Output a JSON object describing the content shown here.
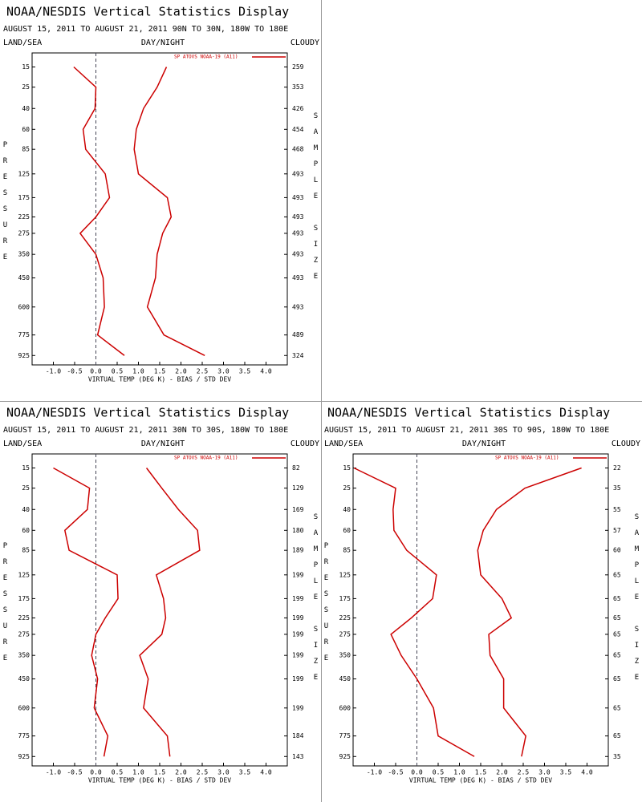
{
  "chart_data": [
    {
      "type": "line",
      "title": "NOAA/NESDIS Vertical Statistics Display",
      "subtitle": "AUGUST 15, 2011 TO AUGUST 21, 2011  90N TO 30N, 180W TO 180E",
      "land_sea": "LAND/SEA",
      "day_night": "DAY/NIGHT",
      "cloudy": "CLOUDY",
      "y_label": "PRESSURE",
      "y2_label": "SAMPLE SIZE",
      "x_label": "VIRTUAL TEMP (DEG K) - BIAS / STD DEV",
      "y": [
        15,
        25,
        40,
        60,
        85,
        125,
        175,
        225,
        275,
        350,
        450,
        600,
        775,
        925
      ],
      "yticks": [
        15,
        25,
        40,
        60,
        85,
        125,
        175,
        225,
        275,
        350,
        450,
        600,
        775,
        925
      ],
      "ylim": [
        10,
        1000
      ],
      "sample_size": [
        259,
        353,
        426,
        454,
        468,
        493,
        493,
        493,
        493,
        493,
        493,
        493,
        489,
        324
      ],
      "xlim": [
        -1.5,
        4.5
      ],
      "xticks": [
        {
          "value": -1,
          "label": "-1.0"
        },
        -0.5,
        {
          "value": 0,
          "label": "0.0"
        },
        0.5,
        {
          "value": 1,
          "label": "1.0"
        },
        1.5,
        {
          "value": 2,
          "label": "2.0"
        },
        2.5,
        {
          "value": 3,
          "label": "3.0"
        },
        3.5,
        {
          "value": 4,
          "label": "4.0"
        }
      ],
      "zero_line": true,
      "series": [
        {
          "name": "SP ATOVS NOAA-19 (A11)",
          "color": "#cc0000",
          "values": [
            -0.52,
            0.0,
            -0.02,
            -0.3,
            -0.24,
            0.22,
            0.32,
            0.0,
            -0.37,
            0.0,
            0.17,
            0.2,
            0.04,
            0.67
          ],
          "std_dev": [
            1.66,
            1.44,
            1.12,
            0.95,
            0.9,
            1.0,
            1.68,
            1.77,
            1.57,
            1.44,
            1.4,
            1.21,
            1.6,
            2.56
          ]
        }
      ]
    },
    {
      "type": "line",
      "title": "NOAA/NESDIS Vertical Statistics Display",
      "subtitle": "AUGUST 15, 2011 TO AUGUST 21, 2011  30N TO 30S, 180W TO 180E",
      "land_sea": "LAND/SEA",
      "day_night": "DAY/NIGHT",
      "cloudy": "CLOUDY",
      "y_label": "PRESSURE",
      "y2_label": "SAMPLE SIZE",
      "x_label": "VIRTUAL TEMP (DEG K) - BIAS / STD DEV",
      "y": [
        15,
        25,
        40,
        60,
        85,
        125,
        175,
        225,
        275,
        350,
        450,
        600,
        775,
        925
      ],
      "yticks": [
        15,
        25,
        40,
        60,
        85,
        125,
        175,
        225,
        275,
        350,
        450,
        600,
        775,
        925
      ],
      "ylim": [
        10,
        1000
      ],
      "sample_size": [
        82,
        129,
        169,
        180,
        189,
        199,
        199,
        199,
        199,
        199,
        199,
        199,
        184,
        143
      ],
      "xlim": [
        -1.5,
        4.5
      ],
      "xticks": [
        {
          "value": -1,
          "label": "-1.0"
        },
        -0.5,
        {
          "value": 0,
          "label": "0.0"
        },
        0.5,
        {
          "value": 1,
          "label": "1.0"
        },
        1.5,
        {
          "value": 2,
          "label": "2.0"
        },
        2.5,
        {
          "value": 3,
          "label": "3.0"
        },
        3.5,
        {
          "value": 4,
          "label": "4.0"
        }
      ],
      "zero_line": true,
      "series": [
        {
          "name": "SP ATOVS NOAA-19 (A11)",
          "color": "#cc0000",
          "values": [
            -1.0,
            -0.15,
            -0.2,
            -0.73,
            -0.63,
            0.5,
            0.52,
            0.22,
            0.0,
            -0.1,
            0.04,
            -0.04,
            0.28,
            0.19
          ],
          "std_dev": [
            1.19,
            1.55,
            1.94,
            2.39,
            2.44,
            1.42,
            1.59,
            1.64,
            1.55,
            1.03,
            1.23,
            1.12,
            1.68,
            1.74
          ]
        }
      ]
    },
    {
      "type": "line",
      "title": "NOAA/NESDIS Vertical Statistics Display",
      "subtitle": "AUGUST 15, 2011 TO AUGUST 21, 2011  30S TO 90S, 180W TO 180E",
      "land_sea": "LAND/SEA",
      "day_night": "DAY/NIGHT",
      "cloudy": "CLOUDY",
      "y_label": "PRESSURE",
      "y2_label": "SAMPLE SIZE",
      "x_label": "VIRTUAL TEMP (DEG K) - BIAS / STD DEV",
      "y": [
        15,
        25,
        40,
        60,
        85,
        125,
        175,
        225,
        275,
        350,
        450,
        600,
        775,
        925
      ],
      "yticks": [
        15,
        25,
        40,
        60,
        85,
        125,
        175,
        225,
        275,
        350,
        450,
        600,
        775,
        925
      ],
      "ylim": [
        10,
        1000
      ],
      "sample_size": [
        22,
        35,
        55,
        57,
        60,
        65,
        65,
        65,
        65,
        65,
        65,
        65,
        65,
        35
      ],
      "xlim": [
        -1.5,
        4.5
      ],
      "xticks": [
        {
          "value": -1,
          "label": "-1.0"
        },
        -0.5,
        {
          "value": 0,
          "label": "0.0"
        },
        0.5,
        {
          "value": 1,
          "label": "1.0"
        },
        1.5,
        {
          "value": 2,
          "label": "2.0"
        },
        2.5,
        {
          "value": 3,
          "label": "3.0"
        },
        3.5,
        {
          "value": 4,
          "label": "4.0"
        }
      ],
      "zero_line": true,
      "series": [
        {
          "name": "SP ATOVS NOAA-19 (A11)",
          "color": "#cc0000",
          "values": [
            -1.48,
            -0.5,
            -0.56,
            -0.54,
            -0.24,
            0.46,
            0.37,
            -0.13,
            -0.61,
            -0.37,
            0.0,
            0.39,
            0.5,
            1.35
          ],
          "std_dev": [
            3.87,
            2.54,
            1.87,
            1.56,
            1.43,
            1.5,
            2.0,
            2.22,
            1.69,
            1.72,
            2.04,
            2.04,
            2.56,
            2.46
          ]
        }
      ]
    }
  ]
}
